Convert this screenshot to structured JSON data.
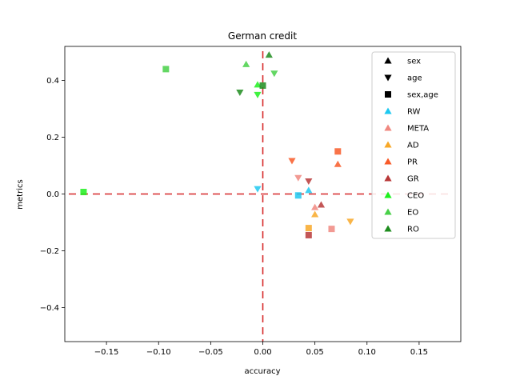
{
  "chart_data": {
    "type": "scatter",
    "title": "German credit",
    "xlabel": "accuracy",
    "ylabel": "metrics",
    "xlim": [
      -0.19,
      0.19
    ],
    "ylim": [
      -0.52,
      0.52
    ],
    "xticks": [
      -0.15,
      -0.1,
      -0.05,
      0.0,
      0.05,
      0.1,
      0.15
    ],
    "xtick_labels": [
      "−0.15",
      "−0.10",
      "−0.05",
      "0.00",
      "0.05",
      "0.10",
      "0.15"
    ],
    "yticks": [
      -0.4,
      -0.2,
      0.0,
      0.2,
      0.4
    ],
    "ytick_labels": [
      "−0.4",
      "−0.2",
      "0.0",
      "0.2",
      "0.4"
    ],
    "grid": false,
    "legend_position": "top-right",
    "reference_lines": {
      "x": 0,
      "y": 0,
      "color": "#d62728",
      "style": "dashed"
    },
    "legend": [
      {
        "label": "sex",
        "marker": "triangle-up",
        "color": "#000000"
      },
      {
        "label": "age",
        "marker": "triangle-down",
        "color": "#000000"
      },
      {
        "label": "sex,age",
        "marker": "square",
        "color": "#000000"
      },
      {
        "label": "RW",
        "marker": "triangle-up",
        "color": "#1ec8f0"
      },
      {
        "label": "META",
        "marker": "triangle-up",
        "color": "#f08880"
      },
      {
        "label": "AD",
        "marker": "triangle-up",
        "color": "#f8a828"
      },
      {
        "label": "PR",
        "marker": "triangle-up",
        "color": "#f85a28"
      },
      {
        "label": "GR",
        "marker": "triangle-up",
        "color": "#b83838"
      },
      {
        "label": "CEO",
        "marker": "triangle-up",
        "color": "#1ef01e"
      },
      {
        "label": "EO",
        "marker": "triangle-up",
        "color": "#48d048"
      },
      {
        "label": "RO",
        "marker": "triangle-up",
        "color": "#1e8c1e"
      }
    ],
    "series": [
      {
        "name": "RW",
        "color": "#1ec8f0",
        "points": [
          {
            "x": 0.044,
            "y": 0.013,
            "marker": "triangle-up"
          },
          {
            "x": -0.005,
            "y": 0.018,
            "marker": "triangle-down"
          },
          {
            "x": 0.034,
            "y": -0.005,
            "marker": "square"
          }
        ]
      },
      {
        "name": "META",
        "color": "#f08880",
        "points": [
          {
            "x": 0.05,
            "y": -0.047,
            "marker": "triangle-up"
          },
          {
            "x": 0.034,
            "y": 0.057,
            "marker": "triangle-down"
          },
          {
            "x": 0.066,
            "y": -0.123,
            "marker": "square"
          }
        ]
      },
      {
        "name": "AD",
        "color": "#f8a828",
        "points": [
          {
            "x": 0.05,
            "y": -0.072,
            "marker": "triangle-up"
          },
          {
            "x": 0.084,
            "y": -0.097,
            "marker": "triangle-down"
          },
          {
            "x": 0.044,
            "y": -0.12,
            "marker": "square"
          }
        ]
      },
      {
        "name": "PR",
        "color": "#f85a28",
        "points": [
          {
            "x": 0.072,
            "y": 0.105,
            "marker": "triangle-up"
          },
          {
            "x": 0.028,
            "y": 0.117,
            "marker": "triangle-down"
          },
          {
            "x": 0.072,
            "y": 0.15,
            "marker": "square"
          }
        ]
      },
      {
        "name": "GR",
        "color": "#b83838",
        "points": [
          {
            "x": 0.056,
            "y": -0.038,
            "marker": "triangle-up"
          },
          {
            "x": 0.044,
            "y": 0.045,
            "marker": "triangle-down"
          },
          {
            "x": 0.044,
            "y": -0.145,
            "marker": "square"
          }
        ]
      },
      {
        "name": "CEO",
        "color": "#1ef01e",
        "points": [
          {
            "x": -0.005,
            "y": 0.385,
            "marker": "triangle-up"
          },
          {
            "x": -0.005,
            "y": 0.35,
            "marker": "triangle-down"
          },
          {
            "x": -0.172,
            "y": 0.007,
            "marker": "square"
          }
        ]
      },
      {
        "name": "EO",
        "color": "#48d048",
        "points": [
          {
            "x": -0.016,
            "y": 0.457,
            "marker": "triangle-up"
          },
          {
            "x": 0.011,
            "y": 0.425,
            "marker": "triangle-down"
          },
          {
            "x": -0.093,
            "y": 0.44,
            "marker": "square"
          }
        ]
      },
      {
        "name": "RO",
        "color": "#1e8c1e",
        "points": [
          {
            "x": 0.006,
            "y": 0.49,
            "marker": "triangle-up"
          },
          {
            "x": -0.022,
            "y": 0.358,
            "marker": "triangle-down"
          },
          {
            "x": 0.0,
            "y": 0.382,
            "marker": "square"
          }
        ]
      }
    ]
  }
}
